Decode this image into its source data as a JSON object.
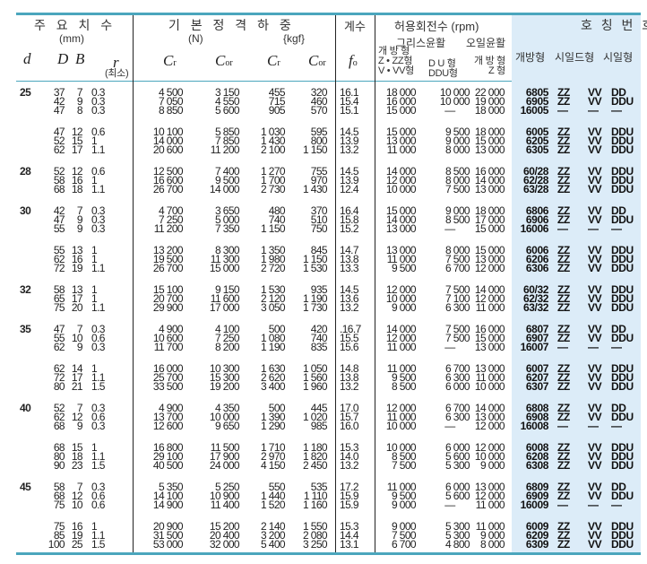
{
  "header": {
    "dims_title": "주 요 치 수",
    "dims_unit": "(mm)",
    "load_title": "기 본 정 격 하 중",
    "load_unit_n": "(N)",
    "load_unit_kgf": "{kgf}",
    "factor_title": "계수",
    "speed_title": "허용회전수 (rpm)",
    "grease": "그리스윤활",
    "oil": "오일윤활",
    "designation_title": "호 칭 번 호",
    "col_d": "d",
    "col_D": "D",
    "col_B": "B",
    "col_r": "r",
    "col_r_note": "(최소)",
    "col_C": "C",
    "sub_r": "r",
    "sub_or": "or",
    "col_f": "f",
    "sub_o": "o",
    "grease_open_1": "개 방 형",
    "grease_open_2": "Z • ZZ형",
    "grease_open_3": "V • VV형",
    "grease_du_1": "D U 형",
    "grease_du_2": "DDU형",
    "oil_open_1": "개 방 형",
    "oil_open_2": "Z 형",
    "open_type": "개방형",
    "shield_type": "시일드형",
    "seal_type": "시일형"
  },
  "colors": {
    "rule": "#4ba6bd",
    "designation_bg": "#dcecf8"
  },
  "groups": [
    {
      "d": "25",
      "rows": [
        [
          "37",
          "7",
          "0.3",
          "4 500",
          "3 150",
          "455",
          "320",
          "16.1",
          "18 000",
          "10 000",
          "22 000",
          "6805",
          "ZZ",
          "VV",
          "DD"
        ],
        [
          "42",
          "9",
          "0.3",
          "7 050",
          "4 550",
          "715",
          "460",
          "15.4",
          "16 000",
          "10 000",
          "19 000",
          "6905",
          "ZZ",
          "VV",
          "DDU"
        ],
        [
          "47",
          "8",
          "0.3",
          "8 850",
          "5 600",
          "905",
          "570",
          "15.1",
          "15 000",
          "—",
          "18 000",
          "16005",
          "—",
          "—",
          "—"
        ]
      ]
    },
    {
      "d": "",
      "rows": [
        [
          "47",
          "12",
          "0.6",
          "10 100",
          "5 850",
          "1 030",
          "595",
          "14.5",
          "15 000",
          "9 500",
          "18 000",
          "6005",
          "ZZ",
          "VV",
          "DDU"
        ],
        [
          "52",
          "15",
          "1",
          "14 000",
          "7 850",
          "1 430",
          "800",
          "13.9",
          "13 000",
          "9 000",
          "15 000",
          "6205",
          "ZZ",
          "VV",
          "DDU"
        ],
        [
          "62",
          "17",
          "1.1",
          "20 600",
          "11 200",
          "2 100",
          "1 150",
          "13.2",
          "11 000",
          "8 000",
          "13 000",
          "6305",
          "ZZ",
          "VV",
          "DDU"
        ]
      ]
    },
    {
      "d": "28",
      "rows": [
        [
          "52",
          "12",
          "0.6",
          "12 500",
          "7 400",
          "1 270",
          "755",
          "14.5",
          "14 000",
          "8 500",
          "16 000",
          "60/28",
          "ZZ",
          "VV",
          "DDU"
        ],
        [
          "58",
          "16",
          "1",
          "16 600",
          "9 500",
          "1 700",
          "970",
          "13.9",
          "12 000",
          "8 000",
          "14 000",
          "62/28",
          "ZZ",
          "VV",
          "DDU"
        ],
        [
          "68",
          "18",
          "1.1",
          "26 700",
          "14 000",
          "2 730",
          "1 430",
          "12.4",
          "10 000",
          "7 500",
          "13 000",
          "63/28",
          "ZZ",
          "VV",
          "DDU"
        ]
      ]
    },
    {
      "d": "30",
      "rows": [
        [
          "42",
          "7",
          "0.3",
          "4 700",
          "3 650",
          "480",
          "370",
          "16.4",
          "15 000",
          "9 000",
          "18 000",
          "6806",
          "ZZ",
          "VV",
          "DD"
        ],
        [
          "47",
          "9",
          "0.3",
          "7 250",
          "5 000",
          "740",
          "510",
          "15.8",
          "14 000",
          "8 500",
          "17 000",
          "6906",
          "ZZ",
          "VV",
          "DDU"
        ],
        [
          "55",
          "9",
          "0.3",
          "11 200",
          "7 350",
          "1 150",
          "750",
          "15.2",
          "13 000",
          "—",
          "15 000",
          "16006",
          "—",
          "—",
          "—"
        ]
      ]
    },
    {
      "d": "",
      "rows": [
        [
          "55",
          "13",
          "1",
          "13 200",
          "8 300",
          "1 350",
          "845",
          "14.7",
          "13 000",
          "8 000",
          "15 000",
          "6006",
          "ZZ",
          "VV",
          "DDU"
        ],
        [
          "62",
          "16",
          "1",
          "19 500",
          "11 300",
          "1 980",
          "1 150",
          "13.8",
          "11 000",
          "7 500",
          "13 000",
          "6206",
          "ZZ",
          "VV",
          "DDU"
        ],
        [
          "72",
          "19",
          "1.1",
          "26 700",
          "15 000",
          "2 720",
          "1 530",
          "13.3",
          "9 500",
          "6 700",
          "12 000",
          "6306",
          "ZZ",
          "VV",
          "DDU"
        ]
      ]
    },
    {
      "d": "32",
      "rows": [
        [
          "58",
          "13",
          "1",
          "15 100",
          "9 150",
          "1 530",
          "935",
          "14.5",
          "12 000",
          "7 500",
          "14 000",
          "60/32",
          "ZZ",
          "VV",
          "DDU"
        ],
        [
          "65",
          "17",
          "1",
          "20 700",
          "11 600",
          "2 120",
          "1 190",
          "13.6",
          "10 000",
          "7 100",
          "12 000",
          "62/32",
          "ZZ",
          "VV",
          "DDU"
        ],
        [
          "75",
          "20",
          "1.1",
          "29 900",
          "17 000",
          "3 050",
          "1 730",
          "13.2",
          "9 000",
          "6 300",
          "11 000",
          "63/32",
          "ZZ",
          "VV",
          "DDU"
        ]
      ]
    },
    {
      "d": "35",
      "rows": [
        [
          "47",
          "7",
          "0.3",
          "4 900",
          "4 100",
          "500",
          "420",
          ".16.7",
          "14 000",
          "7 500",
          "16 000",
          "6807",
          "ZZ",
          "VV",
          "DD"
        ],
        [
          "55",
          "10",
          "0.6",
          "10 600",
          "7 250",
          "1 080",
          "740",
          "15.5",
          "12 000",
          "7 500",
          "15 000",
          "6907",
          "ZZ",
          "VV",
          "DDU"
        ],
        [
          "62",
          "9",
          "0.3",
          "11 700",
          "8 200",
          "1 190",
          "835",
          "15.6",
          "11 000",
          "—",
          "13 000",
          "16007",
          "—",
          "—",
          "—"
        ]
      ]
    },
    {
      "d": "",
      "rows": [
        [
          "62",
          "14",
          "1",
          "16 000",
          "10 300",
          "1 630",
          "1 050",
          "14.8",
          "11 000",
          "6 700",
          "13 000",
          "6007",
          "ZZ",
          "VV",
          "DDU"
        ],
        [
          "72",
          "17",
          "1.1",
          "25 700",
          "15 300",
          "2 620",
          "1 560",
          "13.8",
          "9 500",
          "6 300",
          "11 000",
          "6207",
          "ZZ",
          "VV",
          "DDU"
        ],
        [
          "80",
          "21",
          "1.5",
          "33 500",
          "19 200",
          "3 400",
          "1 960",
          "13.2",
          "8 500",
          "6 000",
          "10 000",
          "6307",
          "ZZ",
          "VV",
          "DDU"
        ]
      ]
    },
    {
      "d": "40",
      "rows": [
        [
          "52",
          "7",
          "0.3",
          "4 900",
          "4 350",
          "500",
          "445",
          "17.0",
          "12 000",
          "6 700",
          "14 000",
          "6808",
          "ZZ",
          "VV",
          "DD"
        ],
        [
          "62",
          "12",
          "0.6",
          "13 700",
          "10 000",
          "1 390",
          "1 020",
          "15.7",
          "11 000",
          "6 300",
          "13 000",
          "6908",
          "ZZ",
          "VV",
          "DDU"
        ],
        [
          "68",
          "9",
          "0.3",
          "12 600",
          "9 650",
          "1 290",
          "985",
          "16.0",
          "10 000",
          "—",
          "12 000",
          "16008",
          "—",
          "—",
          "—"
        ]
      ]
    },
    {
      "d": "",
      "rows": [
        [
          "68",
          "15",
          "1",
          "16 800",
          "11 500",
          "1 710",
          "1 180",
          "15.3",
          "10 000",
          "6 000",
          "12 000",
          "6008",
          "ZZ",
          "VV",
          "DDU"
        ],
        [
          "80",
          "18",
          "1.1",
          "29 100",
          "17 900",
          "2 970",
          "1 820",
          "14.0",
          "8 500",
          "5 600",
          "10 000",
          "6208",
          "ZZ",
          "VV",
          "DDU"
        ],
        [
          "90",
          "23",
          "1.5",
          "40 500",
          "24 000",
          "4 150",
          "2 450",
          "13.2",
          "7 500",
          "5 300",
          "9 000",
          "6308",
          "ZZ",
          "VV",
          "DDU"
        ]
      ]
    },
    {
      "d": "45",
      "rows": [
        [
          "58",
          "7",
          "0.3",
          "5 350",
          "5 250",
          "550",
          "535",
          "17.2",
          "11 000",
          "6 000",
          "13 000",
          "6809",
          "ZZ",
          "VV",
          "DD"
        ],
        [
          "68",
          "12",
          "0.6",
          "14 100",
          "10 900",
          "1 440",
          "1 110",
          "15.9",
          "9 500",
          "5 600",
          "12 000",
          "6909",
          "ZZ",
          "VV",
          "DDU"
        ],
        [
          "75",
          "10",
          "0.6",
          "14 900",
          "11 400",
          "1 520",
          "1 160",
          "15.9",
          "9 000",
          "—",
          "11 000",
          "16009",
          "—",
          "—",
          "—"
        ]
      ]
    },
    {
      "d": "",
      "rows": [
        [
          "75",
          "16",
          "1",
          "20 900",
          "15 200",
          "2 140",
          "1 550",
          "15.3",
          "9 000",
          "5 300",
          "11 000",
          "6009",
          "ZZ",
          "VV",
          "DDU"
        ],
        [
          "85",
          "19",
          "1.1",
          "31 500",
          "20 400",
          "3 200",
          "2 080",
          "14.4",
          "7 500",
          "5 300",
          "9 000",
          "6209",
          "ZZ",
          "VV",
          "DDU"
        ],
        [
          "100",
          "25",
          "1.5",
          "53 000",
          "32 000",
          "5 400",
          "3 250",
          "13.1",
          "6 700",
          "4 800",
          "8 000",
          "6309",
          "ZZ",
          "VV",
          "DDU"
        ]
      ]
    }
  ]
}
